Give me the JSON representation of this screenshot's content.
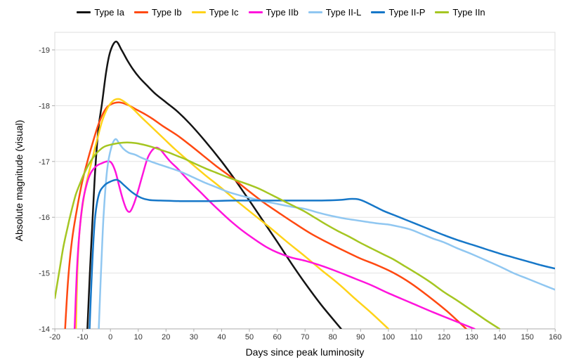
{
  "chart_data": {
    "type": "line",
    "title": "",
    "xlabel": "Days since peak luminosity",
    "ylabel": "Absolute magnitude (visual)",
    "xlim": [
      -20,
      160
    ],
    "ylim": [
      -19.3,
      -14
    ],
    "y_axis_inverted_note": "brighter (more negative) magnitudes plotted upward",
    "x_ticks": [
      -20,
      -10,
      0,
      10,
      20,
      30,
      40,
      50,
      60,
      70,
      80,
      90,
      100,
      110,
      120,
      130,
      140,
      150,
      160
    ],
    "y_ticks": [
      -19,
      -18,
      -17,
      -16,
      -15,
      -14
    ],
    "grid": "horizontal",
    "legend_position": "top",
    "series": [
      {
        "name": "Type Ia",
        "color": "#141414",
        "points": [
          [
            -8.3,
            -14
          ],
          [
            -7.4,
            -15
          ],
          [
            -6.4,
            -16
          ],
          [
            -5.4,
            -16.9
          ],
          [
            -4.3,
            -17.6
          ],
          [
            -3,
            -18.05
          ],
          [
            -1.5,
            -18.62
          ],
          [
            0,
            -18.98
          ],
          [
            2,
            -19.15
          ],
          [
            4,
            -19.0
          ],
          [
            6,
            -18.82
          ],
          [
            8,
            -18.66
          ],
          [
            10.5,
            -18.5
          ],
          [
            13,
            -18.37
          ],
          [
            16,
            -18.22
          ],
          [
            20,
            -18.06
          ],
          [
            24,
            -17.9
          ],
          [
            28.5,
            -17.68
          ],
          [
            34,
            -17.37
          ],
          [
            40,
            -17.0
          ],
          [
            45,
            -16.66
          ],
          [
            50,
            -16.3
          ],
          [
            55,
            -15.93
          ],
          [
            60,
            -15.56
          ],
          [
            65,
            -15.18
          ],
          [
            70,
            -14.82
          ],
          [
            76,
            -14.42
          ],
          [
            83,
            -14.0
          ]
        ]
      },
      {
        "name": "Type Ib",
        "color": "#ff4911",
        "points": [
          [
            -16.3,
            -14
          ],
          [
            -15.2,
            -14.9
          ],
          [
            -13.8,
            -15.6
          ],
          [
            -12.2,
            -16.1
          ],
          [
            -10.3,
            -16.6
          ],
          [
            -8.3,
            -17.0
          ],
          [
            -6.3,
            -17.35
          ],
          [
            -4.2,
            -17.68
          ],
          [
            -2,
            -17.92
          ],
          [
            0,
            -18.02
          ],
          [
            3,
            -18.06
          ],
          [
            6,
            -18.02
          ],
          [
            9,
            -17.94
          ],
          [
            12,
            -17.86
          ],
          [
            15,
            -17.77
          ],
          [
            19,
            -17.63
          ],
          [
            24,
            -17.47
          ],
          [
            28.5,
            -17.3
          ],
          [
            33,
            -17.12
          ],
          [
            38,
            -16.92
          ],
          [
            44,
            -16.7
          ],
          [
            49,
            -16.5
          ],
          [
            55,
            -16.27
          ],
          [
            60,
            -16.1
          ],
          [
            66,
            -15.9
          ],
          [
            72,
            -15.71
          ],
          [
            78,
            -15.55
          ],
          [
            84,
            -15.4
          ],
          [
            90,
            -15.26
          ],
          [
            96,
            -15.14
          ],
          [
            102,
            -15.0
          ],
          [
            108,
            -14.82
          ],
          [
            114,
            -14.6
          ],
          [
            121,
            -14.32
          ],
          [
            128,
            -14.0
          ]
        ]
      },
      {
        "name": "Type Ic",
        "color": "#ffd319",
        "points": [
          [
            -12.4,
            -14
          ],
          [
            -11.9,
            -15.0
          ],
          [
            -11.2,
            -15.7
          ],
          [
            -10.2,
            -16.15
          ],
          [
            -8.7,
            -16.6
          ],
          [
            -7,
            -16.95
          ],
          [
            -5,
            -17.35
          ],
          [
            -3,
            -17.72
          ],
          [
            -1,
            -17.96
          ],
          [
            1,
            -18.09
          ],
          [
            3,
            -18.12
          ],
          [
            5,
            -18.07
          ],
          [
            8,
            -17.95
          ],
          [
            11,
            -17.8
          ],
          [
            15,
            -17.61
          ],
          [
            19,
            -17.42
          ],
          [
            23,
            -17.23
          ],
          [
            28.5,
            -16.99
          ],
          [
            34,
            -16.76
          ],
          [
            40,
            -16.52
          ],
          [
            46,
            -16.27
          ],
          [
            52,
            -16.03
          ],
          [
            58,
            -15.79
          ],
          [
            64,
            -15.54
          ],
          [
            70,
            -15.3
          ],
          [
            76,
            -15.05
          ],
          [
            82,
            -14.81
          ],
          [
            88,
            -14.54
          ],
          [
            94,
            -14.28
          ],
          [
            100,
            -14.0
          ]
        ]
      },
      {
        "name": "Type IIb",
        "color": "#ff14dc",
        "points": [
          [
            -12.9,
            -14
          ],
          [
            -12.1,
            -15.0
          ],
          [
            -11.2,
            -15.7
          ],
          [
            -10,
            -16.25
          ],
          [
            -8.5,
            -16.6
          ],
          [
            -7,
            -16.8
          ],
          [
            -5,
            -16.92
          ],
          [
            -3,
            -16.97
          ],
          [
            -1.2,
            -17.0
          ],
          [
            0.3,
            -16.98
          ],
          [
            1.8,
            -16.82
          ],
          [
            3.2,
            -16.55
          ],
          [
            4.6,
            -16.3
          ],
          [
            5.8,
            -16.14
          ],
          [
            7,
            -16.1
          ],
          [
            8.3,
            -16.22
          ],
          [
            9.8,
            -16.45
          ],
          [
            11.5,
            -16.75
          ],
          [
            13.3,
            -17.05
          ],
          [
            15,
            -17.2
          ],
          [
            16.5,
            -17.25
          ],
          [
            18,
            -17.21
          ],
          [
            19.5,
            -17.12
          ],
          [
            21.5,
            -17.0
          ],
          [
            24,
            -16.88
          ],
          [
            28.5,
            -16.64
          ],
          [
            32,
            -16.47
          ],
          [
            36,
            -16.27
          ],
          [
            40,
            -16.08
          ],
          [
            44,
            -15.9
          ],
          [
            48,
            -15.74
          ],
          [
            52,
            -15.6
          ],
          [
            56,
            -15.47
          ],
          [
            60,
            -15.37
          ],
          [
            65,
            -15.28
          ],
          [
            70,
            -15.22
          ],
          [
            76,
            -15.13
          ],
          [
            82,
            -15.02
          ],
          [
            88,
            -14.9
          ],
          [
            94,
            -14.78
          ],
          [
            100,
            -14.64
          ],
          [
            108,
            -14.47
          ],
          [
            116,
            -14.3
          ],
          [
            124,
            -14.14
          ],
          [
            131,
            -14.0
          ]
        ]
      },
      {
        "name": "Type II-L",
        "color": "#90c7f1",
        "points": [
          [
            -4.2,
            -14
          ],
          [
            -3.4,
            -15.0
          ],
          [
            -2.5,
            -16.0
          ],
          [
            -1.2,
            -16.85
          ],
          [
            0.3,
            -17.25
          ],
          [
            1.8,
            -17.4
          ],
          [
            3.2,
            -17.32
          ],
          [
            4.6,
            -17.23
          ],
          [
            6.5,
            -17.16
          ],
          [
            9,
            -17.12
          ],
          [
            11,
            -17.07
          ],
          [
            13,
            -17.03
          ],
          [
            15,
            -16.99
          ],
          [
            18,
            -16.94
          ],
          [
            21,
            -16.89
          ],
          [
            24,
            -16.84
          ],
          [
            27,
            -16.78
          ],
          [
            30,
            -16.71
          ],
          [
            34,
            -16.62
          ],
          [
            38,
            -16.54
          ],
          [
            42,
            -16.46
          ],
          [
            46,
            -16.4
          ],
          [
            50,
            -16.35
          ],
          [
            55,
            -16.29
          ],
          [
            60,
            -16.24
          ],
          [
            65,
            -16.19
          ],
          [
            70,
            -16.15
          ],
          [
            75,
            -16.08
          ],
          [
            80,
            -16.02
          ],
          [
            84,
            -15.98
          ],
          [
            88,
            -15.95
          ],
          [
            92,
            -15.92
          ],
          [
            96,
            -15.89
          ],
          [
            100,
            -15.87
          ],
          [
            104,
            -15.83
          ],
          [
            108,
            -15.78
          ],
          [
            112,
            -15.7
          ],
          [
            116,
            -15.62
          ],
          [
            120,
            -15.55
          ],
          [
            125,
            -15.44
          ],
          [
            130,
            -15.34
          ],
          [
            135,
            -15.23
          ],
          [
            140,
            -15.12
          ],
          [
            145,
            -15.0
          ],
          [
            150,
            -14.9
          ],
          [
            155,
            -14.8
          ],
          [
            160,
            -14.7
          ]
        ]
      },
      {
        "name": "Type II-P",
        "color": "#1677c8",
        "points": [
          [
            -7.5,
            -14
          ],
          [
            -6.6,
            -15.1
          ],
          [
            -5.6,
            -15.95
          ],
          [
            -4.2,
            -16.4
          ],
          [
            -2.2,
            -16.57
          ],
          [
            0,
            -16.64
          ],
          [
            2.5,
            -16.67
          ],
          [
            5,
            -16.57
          ],
          [
            8,
            -16.44
          ],
          [
            11,
            -16.35
          ],
          [
            14,
            -16.31
          ],
          [
            18,
            -16.3
          ],
          [
            25,
            -16.29
          ],
          [
            35,
            -16.29
          ],
          [
            45,
            -16.3
          ],
          [
            55,
            -16.3
          ],
          [
            65,
            -16.3
          ],
          [
            75,
            -16.3
          ],
          [
            82,
            -16.31
          ],
          [
            87,
            -16.33
          ],
          [
            90,
            -16.31
          ],
          [
            94,
            -16.22
          ],
          [
            98,
            -16.12
          ],
          [
            102,
            -16.04
          ],
          [
            106,
            -15.96
          ],
          [
            110,
            -15.88
          ],
          [
            115,
            -15.78
          ],
          [
            120,
            -15.68
          ],
          [
            125,
            -15.59
          ],
          [
            130,
            -15.51
          ],
          [
            135,
            -15.43
          ],
          [
            140,
            -15.35
          ],
          [
            145,
            -15.28
          ],
          [
            150,
            -15.21
          ],
          [
            155,
            -15.14
          ],
          [
            160,
            -15.08
          ]
        ]
      },
      {
        "name": "Type IIn",
        "color": "#a5c622",
        "points": [
          [
            -20,
            -14.55
          ],
          [
            -18.5,
            -15.0
          ],
          [
            -17,
            -15.45
          ],
          [
            -15.5,
            -15.8
          ],
          [
            -14,
            -16.12
          ],
          [
            -12.5,
            -16.4
          ],
          [
            -11,
            -16.6
          ],
          [
            -9.5,
            -16.78
          ],
          [
            -8,
            -16.93
          ],
          [
            -6.5,
            -17.05
          ],
          [
            -5,
            -17.15
          ],
          [
            -3.5,
            -17.22
          ],
          [
            -2,
            -17.27
          ],
          [
            0,
            -17.3
          ],
          [
            3,
            -17.33
          ],
          [
            6,
            -17.34
          ],
          [
            9,
            -17.33
          ],
          [
            12,
            -17.3
          ],
          [
            15,
            -17.26
          ],
          [
            18,
            -17.21
          ],
          [
            21,
            -17.16
          ],
          [
            24,
            -17.1
          ],
          [
            27,
            -17.04
          ],
          [
            30,
            -16.97
          ],
          [
            34,
            -16.88
          ],
          [
            38,
            -16.8
          ],
          [
            42,
            -16.72
          ],
          [
            46,
            -16.65
          ],
          [
            50,
            -16.58
          ],
          [
            54,
            -16.5
          ],
          [
            58,
            -16.4
          ],
          [
            62,
            -16.3
          ],
          [
            66,
            -16.2
          ],
          [
            70,
            -16.1
          ],
          [
            74,
            -15.98
          ],
          [
            78,
            -15.86
          ],
          [
            82,
            -15.75
          ],
          [
            86,
            -15.65
          ],
          [
            90,
            -15.54
          ],
          [
            94,
            -15.44
          ],
          [
            98,
            -15.34
          ],
          [
            102,
            -15.24
          ],
          [
            106,
            -15.12
          ],
          [
            110,
            -15.0
          ],
          [
            115,
            -14.84
          ],
          [
            120,
            -14.66
          ],
          [
            125,
            -14.5
          ],
          [
            130,
            -14.33
          ],
          [
            135,
            -14.16
          ],
          [
            140,
            -14.0
          ]
        ]
      }
    ],
    "colors": {
      "background": "#ffffff",
      "gridline": "#e3e3e3",
      "plot_border": "#dcdcdc",
      "axis_line": "#ababab",
      "tick_label": "#333333",
      "axis_title": "#000000"
    }
  }
}
